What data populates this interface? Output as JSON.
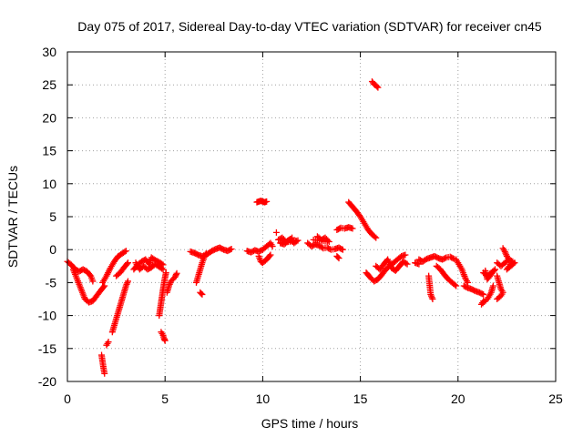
{
  "chart_data": {
    "type": "scatter",
    "title": "Day 075 of 2017, Sidereal Day-to-day VTEC variation (SDTVAR) for receiver cn45",
    "xlabel": "GPS time / hours",
    "ylabel": "SDTVAR / TECUs",
    "xlim": [
      0,
      25
    ],
    "ylim": [
      -20,
      30
    ],
    "xticks": [
      "0",
      "5",
      "10",
      "15",
      "20",
      "25"
    ],
    "yticks": [
      "-20",
      "-15",
      "-10",
      "-5",
      "0",
      "5",
      "10",
      "15",
      "20",
      "25",
      "30"
    ],
    "grid": true,
    "marker": "plus",
    "color": "#ff0000",
    "series": [
      {
        "name": "SDTVAR",
        "segments": [
          [
            [
              0.0,
              -1.8
            ],
            [
              0.2,
              -2.3
            ],
            [
              0.4,
              -3.0
            ],
            [
              0.6,
              -3.3
            ],
            [
              0.8,
              -3.0
            ],
            [
              1.0,
              -3.3
            ],
            [
              1.2,
              -4.0
            ],
            [
              1.3,
              -4.8
            ]
          ],
          [
            [
              0.3,
              -3.0
            ],
            [
              0.5,
              -4.5
            ],
            [
              0.7,
              -6.0
            ],
            [
              0.9,
              -7.5
            ],
            [
              1.1,
              -8.0
            ],
            [
              1.3,
              -7.8
            ],
            [
              1.5,
              -7.0
            ],
            [
              1.7,
              -6.2
            ],
            [
              1.9,
              -5.5
            ]
          ],
          [
            [
              1.8,
              -5.0
            ],
            [
              2.0,
              -4.0
            ],
            [
              2.2,
              -2.8
            ],
            [
              2.4,
              -1.8
            ],
            [
              2.6,
              -1.0
            ],
            [
              2.8,
              -0.6
            ],
            [
              3.0,
              -0.2
            ]
          ],
          [
            [
              1.75,
              -16.0
            ],
            [
              1.8,
              -17.0
            ],
            [
              1.85,
              -18.0
            ],
            [
              1.9,
              -18.8
            ]
          ],
          [
            [
              2.0,
              -14.5
            ],
            [
              2.1,
              -14.0
            ]
          ],
          [
            [
              2.3,
              -12.5
            ],
            [
              2.4,
              -11.5
            ],
            [
              2.5,
              -10.5
            ],
            [
              2.6,
              -9.5
            ],
            [
              2.7,
              -8.5
            ],
            [
              2.8,
              -7.5
            ],
            [
              2.9,
              -6.5
            ],
            [
              3.0,
              -5.5
            ],
            [
              3.1,
              -4.8
            ]
          ],
          [
            [
              2.5,
              -4.0
            ],
            [
              2.7,
              -3.5
            ],
            [
              2.9,
              -2.7
            ],
            [
              3.1,
              -2.0
            ]
          ],
          [
            [
              3.4,
              -3.0
            ],
            [
              3.6,
              -2.3
            ],
            [
              3.8,
              -1.8
            ],
            [
              4.0,
              -1.5
            ],
            [
              4.2,
              -2.2
            ],
            [
              4.3,
              -1.2
            ],
            [
              4.5,
              -1.6
            ],
            [
              4.7,
              -1.9
            ],
            [
              4.9,
              -2.3
            ]
          ],
          [
            [
              3.5,
              -2.0
            ],
            [
              3.7,
              -3.0
            ],
            [
              3.9,
              -2.5
            ],
            [
              4.1,
              -3.0
            ],
            [
              4.3,
              -2.7
            ],
            [
              4.5,
              -2.2
            ],
            [
              4.7,
              -2.6
            ],
            [
              4.9,
              -3.0
            ]
          ],
          [
            [
              4.7,
              -10.0
            ],
            [
              4.75,
              -9.0
            ],
            [
              4.8,
              -8.0
            ],
            [
              4.85,
              -7.0
            ],
            [
              4.9,
              -6.0
            ],
            [
              4.95,
              -5.0
            ],
            [
              5.0,
              -4.2
            ],
            [
              5.05,
              -3.5
            ]
          ],
          [
            [
              4.8,
              -12.5
            ],
            [
              4.9,
              -13.0
            ],
            [
              4.95,
              -13.5
            ],
            [
              5.0,
              -13.8
            ]
          ],
          [
            [
              5.1,
              -6.5
            ],
            [
              5.2,
              -5.5
            ],
            [
              5.3,
              -4.8
            ],
            [
              5.5,
              -4.2
            ],
            [
              5.6,
              -3.6
            ]
          ],
          [
            [
              6.6,
              -5.0
            ],
            [
              6.7,
              -4.0
            ],
            [
              6.8,
              -3.0
            ],
            [
              6.9,
              -2.0
            ],
            [
              7.0,
              -1.2
            ],
            [
              7.1,
              -0.6
            ]
          ],
          [
            [
              6.8,
              -6.5
            ],
            [
              6.9,
              -6.8
            ]
          ],
          [
            [
              6.3,
              -0.3
            ],
            [
              6.5,
              -0.5
            ],
            [
              6.7,
              -0.8
            ],
            [
              6.9,
              -1.0
            ],
            [
              7.2,
              -0.6
            ],
            [
              7.4,
              -0.2
            ],
            [
              7.6,
              0.1
            ],
            [
              7.8,
              0.3
            ],
            [
              8.0,
              0.0
            ],
            [
              8.2,
              -0.2
            ],
            [
              8.4,
              0.1
            ]
          ],
          [
            [
              9.2,
              -0.2
            ],
            [
              9.4,
              -0.4
            ],
            [
              9.6,
              -0.1
            ],
            [
              9.8,
              -0.3
            ],
            [
              10.0,
              0.0
            ],
            [
              10.2,
              0.5
            ],
            [
              10.4,
              1.0
            ],
            [
              10.5,
              0.5
            ]
          ],
          [
            [
              9.8,
              -1.0
            ],
            [
              9.9,
              -1.8
            ],
            [
              10.0,
              -2.0
            ],
            [
              10.2,
              -1.5
            ],
            [
              10.4,
              -0.8
            ]
          ],
          [
            [
              9.7,
              7.2
            ],
            [
              9.8,
              7.3
            ],
            [
              9.9,
              7.4
            ],
            [
              10.0,
              7.3
            ],
            [
              10.1,
              7.2
            ],
            [
              10.2,
              7.3
            ]
          ],
          [
            [
              10.7,
              2.6
            ]
          ],
          [
            [
              10.8,
              1.5
            ],
            [
              11.0,
              1.8
            ],
            [
              11.2,
              1.2
            ],
            [
              11.4,
              1.6
            ],
            [
              11.6,
              1.0
            ],
            [
              11.8,
              1.4
            ],
            [
              10.9,
              1.0
            ],
            [
              11.1,
              0.8
            ],
            [
              11.5,
              1.8
            ]
          ],
          [
            [
              12.3,
              1.0
            ],
            [
              12.5,
              0.5
            ],
            [
              12.7,
              0.8
            ],
            [
              12.9,
              0.6
            ],
            [
              13.1,
              0.2
            ],
            [
              13.3,
              0.3
            ],
            [
              13.5,
              0.0
            ],
            [
              13.7,
              0.1
            ],
            [
              13.9,
              0.3
            ],
            [
              14.1,
              0.0
            ]
          ],
          [
            [
              12.8,
              2.0
            ],
            [
              13.0,
              1.5
            ],
            [
              13.2,
              1.8
            ],
            [
              13.4,
              1.2
            ],
            [
              12.6,
              1.5
            ]
          ],
          [
            [
              13.8,
              -1.0
            ],
            [
              13.9,
              -1.3
            ]
          ],
          [
            [
              13.8,
              3.0
            ],
            [
              14.0,
              3.3
            ],
            [
              14.2,
              3.2
            ],
            [
              14.4,
              3.4
            ],
            [
              14.6,
              3.2
            ]
          ],
          [
            [
              14.4,
              7.2
            ],
            [
              14.6,
              6.5
            ],
            [
              14.8,
              5.8
            ],
            [
              15.0,
              5.0
            ],
            [
              15.2,
              4.0
            ],
            [
              15.4,
              3.0
            ],
            [
              15.6,
              2.3
            ],
            [
              15.8,
              1.8
            ]
          ],
          [
            [
              15.6,
              25.5
            ],
            [
              15.7,
              25.1
            ],
            [
              15.8,
              24.9
            ],
            [
              15.9,
              24.6
            ]
          ],
          [
            [
              15.3,
              -3.5
            ],
            [
              15.5,
              -4.2
            ],
            [
              15.7,
              -4.8
            ],
            [
              15.9,
              -4.5
            ],
            [
              16.1,
              -3.8
            ],
            [
              16.3,
              -3.0
            ],
            [
              16.5,
              -2.5
            ],
            [
              16.7,
              -2.0
            ],
            [
              16.9,
              -1.5
            ],
            [
              17.1,
              -1.0
            ],
            [
              17.3,
              -0.8
            ]
          ],
          [
            [
              15.8,
              -2.5
            ],
            [
              16.0,
              -3.0
            ],
            [
              16.2,
              -2.2
            ],
            [
              16.4,
              -1.5
            ],
            [
              16.6,
              -2.8
            ],
            [
              16.8,
              -3.2
            ],
            [
              17.0,
              -2.5
            ],
            [
              17.2,
              -1.8
            ],
            [
              17.4,
              -2.2
            ]
          ],
          [
            [
              18.0,
              -1.5
            ],
            [
              18.2,
              -1.8
            ],
            [
              18.4,
              -1.4
            ],
            [
              18.6,
              -1.2
            ],
            [
              18.8,
              -1.0
            ],
            [
              19.0,
              -1.3
            ],
            [
              19.2,
              -1.5
            ],
            [
              19.4,
              -1.2
            ],
            [
              19.6,
              -1.1
            ],
            [
              19.8,
              -1.4
            ]
          ],
          [
            [
              17.8,
              -2.0
            ],
            [
              18.0,
              -2.2
            ]
          ],
          [
            [
              18.5,
              -4.0
            ],
            [
              18.6,
              -6.8
            ],
            [
              18.7,
              -7.5
            ]
          ],
          [
            [
              18.9,
              -2.5
            ],
            [
              19.1,
              -3.0
            ],
            [
              19.3,
              -3.8
            ],
            [
              19.5,
              -4.5
            ],
            [
              19.7,
              -5.0
            ],
            [
              19.9,
              -5.5
            ]
          ],
          [
            [
              19.9,
              -1.5
            ],
            [
              20.0,
              -2.0
            ],
            [
              20.1,
              -2.5
            ],
            [
              20.2,
              -3.0
            ],
            [
              20.3,
              -3.8
            ],
            [
              20.4,
              -4.5
            ],
            [
              20.5,
              -5.0
            ]
          ],
          [
            [
              20.3,
              -5.5
            ],
            [
              20.5,
              -5.8
            ],
            [
              20.7,
              -6.0
            ],
            [
              20.9,
              -6.3
            ],
            [
              21.1,
              -6.5
            ],
            [
              21.3,
              -6.8
            ]
          ],
          [
            [
              21.3,
              -3.5
            ],
            [
              21.5,
              -4.0
            ],
            [
              21.7,
              -3.5
            ],
            [
              21.9,
              -3.0
            ],
            [
              21.5,
              -4.5
            ],
            [
              21.4,
              -3.2
            ]
          ],
          [
            [
              21.8,
              -5.5
            ],
            [
              21.7,
              -6.5
            ],
            [
              21.5,
              -7.5
            ],
            [
              21.2,
              -8.3
            ],
            [
              21.3,
              -7.8
            ]
          ],
          [
            [
              22.0,
              -4.0
            ],
            [
              22.1,
              -5.0
            ],
            [
              22.2,
              -6.0
            ],
            [
              22.3,
              -6.5
            ],
            [
              22.2,
              -7.0
            ],
            [
              22.0,
              -7.5
            ]
          ],
          [
            [
              22.0,
              -2.0
            ],
            [
              22.2,
              -2.5
            ],
            [
              22.4,
              -2.0
            ],
            [
              22.6,
              -1.5
            ],
            [
              22.8,
              -1.8
            ],
            [
              22.5,
              -3.0
            ],
            [
              22.7,
              -2.5
            ],
            [
              22.9,
              -2.0
            ]
          ],
          [
            [
              22.3,
              0.2
            ],
            [
              22.4,
              -0.3
            ],
            [
              22.5,
              -1.0
            ],
            [
              22.6,
              -1.5
            ]
          ]
        ]
      }
    ]
  }
}
